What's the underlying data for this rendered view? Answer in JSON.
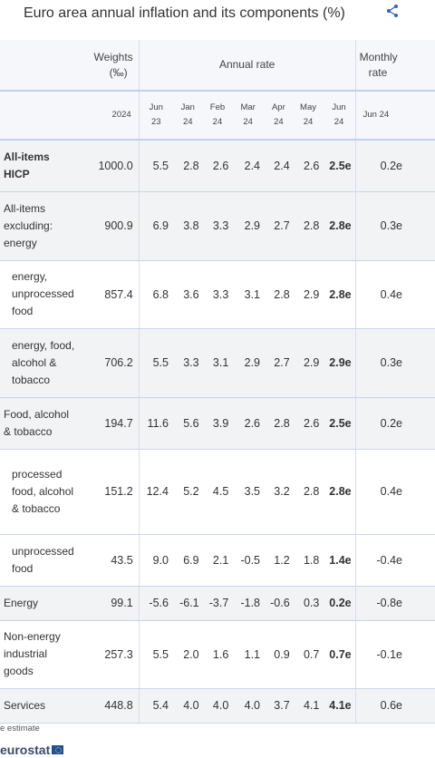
{
  "title": "Euro area annual inflation and its components (%)",
  "header": {
    "weights_label": "Weights (‰)",
    "weights_line1": "Weights",
    "weights_line2": "(‰)",
    "annual_rate_label": "Annual rate",
    "monthly_line1": "Monthly",
    "monthly_line2": "rate",
    "weights_year": "2024",
    "periods": [
      {
        "month": "Jun",
        "year": "23"
      },
      {
        "month": "Jan",
        "year": "24"
      },
      {
        "month": "Feb",
        "year": "24"
      },
      {
        "month": "Mar",
        "year": "24"
      },
      {
        "month": "Apr",
        "year": "24"
      },
      {
        "month": "May",
        "year": "24"
      },
      {
        "month": "Jun",
        "year": "24"
      }
    ],
    "monthly_period": "Jun 24"
  },
  "rows": [
    {
      "label": "All-items HICP",
      "weight": "1000.0",
      "rates": [
        "5.5",
        "2.8",
        "2.6",
        "2.4",
        "2.4",
        "2.6",
        "2.5e"
      ],
      "monthly": "0.2e"
    },
    {
      "label": "All-items excluding: energy",
      "weight": "900.9",
      "rates": [
        "6.9",
        "3.8",
        "3.3",
        "2.9",
        "2.7",
        "2.8",
        "2.8e"
      ],
      "monthly": "0.3e"
    },
    {
      "label": "energy, unprocessed food",
      "weight": "857.4",
      "rates": [
        "6.8",
        "3.6",
        "3.3",
        "3.1",
        "2.8",
        "2.9",
        "2.8e"
      ],
      "monthly": "0.4e"
    },
    {
      "label": "energy, food, alcohol & tobacco",
      "weight": "706.2",
      "rates": [
        "5.5",
        "3.3",
        "3.1",
        "2.9",
        "2.7",
        "2.9",
        "2.9e"
      ],
      "monthly": "0.3e"
    },
    {
      "label": "Food, alcohol & tobacco",
      "weight": "194.7",
      "rates": [
        "11.6",
        "5.6",
        "3.9",
        "2.6",
        "2.8",
        "2.6",
        "2.5e"
      ],
      "monthly": "0.2e"
    },
    {
      "label": "processed food, alcohol & tobacco",
      "weight": "151.2",
      "rates": [
        "12.4",
        "5.2",
        "4.5",
        "3.5",
        "3.2",
        "2.8",
        "2.8e"
      ],
      "monthly": "0.4e"
    },
    {
      "label": "unprocessed food",
      "weight": "43.5",
      "rates": [
        "9.0",
        "6.9",
        "2.1",
        "-0.5",
        "1.2",
        "1.8",
        "1.4e"
      ],
      "monthly": "-0.4e"
    },
    {
      "label": "Energy",
      "weight": "99.1",
      "rates": [
        "-5.6",
        "-6.1",
        "-3.7",
        "-1.8",
        "-0.6",
        "0.3",
        "0.2e"
      ],
      "monthly": "-0.8e"
    },
    {
      "label": "Non-energy industrial goods",
      "weight": "257.3",
      "rates": [
        "5.5",
        "2.0",
        "1.6",
        "1.1",
        "0.9",
        "0.7",
        "0.7e"
      ],
      "monthly": "-0.1e"
    },
    {
      "label": "Services",
      "weight": "448.8",
      "rates": [
        "5.4",
        "4.0",
        "4.0",
        "4.0",
        "3.7",
        "4.1",
        "4.1e"
      ],
      "monthly": "0.6e"
    }
  ],
  "footnote": "e estimate",
  "logo_text": "eurostat",
  "icons": {
    "share": "share-icon",
    "flag": "eu-flag-icon"
  }
}
